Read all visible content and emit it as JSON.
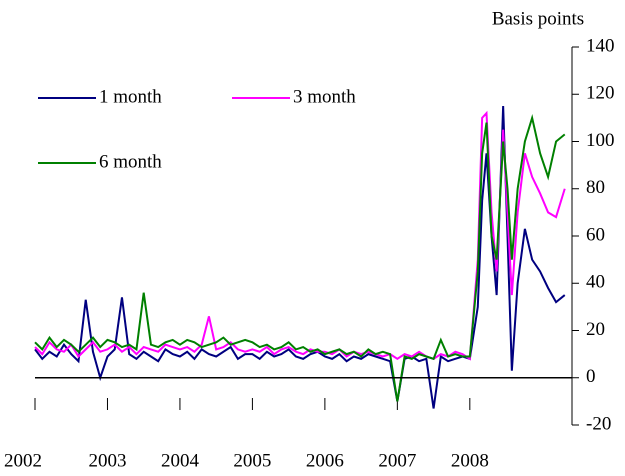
{
  "chart_data": {
    "type": "line",
    "ylabel": "Basis points",
    "x": [
      2002.0,
      2002.1,
      2002.2,
      2002.3,
      2002.4,
      2002.5,
      2002.6,
      2002.7,
      2002.8,
      2002.9,
      2003.0,
      2003.1,
      2003.2,
      2003.3,
      2003.4,
      2003.5,
      2003.6,
      2003.7,
      2003.8,
      2003.9,
      2004.0,
      2004.1,
      2004.2,
      2004.3,
      2004.4,
      2004.5,
      2004.6,
      2004.7,
      2004.8,
      2004.9,
      2005.0,
      2005.1,
      2005.2,
      2005.3,
      2005.4,
      2005.5,
      2005.6,
      2005.7,
      2005.8,
      2005.9,
      2006.0,
      2006.1,
      2006.2,
      2006.3,
      2006.4,
      2006.5,
      2006.6,
      2006.7,
      2006.8,
      2006.9,
      2007.0,
      2007.1,
      2007.2,
      2007.3,
      2007.4,
      2007.5,
      2007.6,
      2007.7,
      2007.8,
      2007.9,
      2008.0,
      2008.11,
      2008.17,
      2008.23,
      2008.3,
      2008.37,
      2008.46,
      2008.52,
      2008.58,
      2008.66,
      2008.76,
      2008.86,
      2008.97,
      2009.08,
      2009.19,
      2009.31
    ],
    "series": [
      {
        "name": "1 month",
        "color": "#000080",
        "values": [
          12,
          8,
          11,
          9,
          14,
          10,
          7,
          33,
          11,
          0,
          9,
          12,
          34,
          10,
          8,
          11,
          9,
          7,
          12,
          10,
          9,
          11,
          8,
          12,
          10,
          9,
          11,
          13,
          8,
          10,
          10,
          8,
          11,
          9,
          10,
          12,
          9,
          8,
          10,
          11,
          9,
          8,
          10,
          7,
          9,
          8,
          10,
          9,
          8,
          7,
          -10,
          8,
          9,
          7,
          8,
          -13,
          9,
          7,
          8,
          9,
          8,
          30,
          75,
          95,
          60,
          35,
          115,
          60,
          3,
          40,
          63,
          50,
          45,
          38,
          32,
          35
        ]
      },
      {
        "name": "3 month",
        "color": "#ff00ff",
        "values": [
          13,
          10,
          15,
          12,
          11,
          14,
          9,
          12,
          15,
          11,
          12,
          14,
          11,
          13,
          10,
          13,
          12,
          11,
          14,
          13,
          12,
          13,
          11,
          14,
          26,
          12,
          13,
          15,
          12,
          11,
          12,
          11,
          13,
          10,
          12,
          13,
          11,
          10,
          12,
          11,
          11,
          10,
          12,
          9,
          11,
          10,
          11,
          10,
          9,
          10,
          8,
          10,
          9,
          11,
          9,
          8,
          10,
          9,
          11,
          10,
          8,
          50,
          110,
          112,
          70,
          45,
          105,
          70,
          35,
          70,
          95,
          85,
          78,
          70,
          68,
          80
        ]
      },
      {
        "name": "6 month",
        "color": "#008000",
        "values": [
          15,
          12,
          17,
          13,
          16,
          14,
          11,
          14,
          17,
          13,
          16,
          15,
          13,
          14,
          12,
          36,
          14,
          13,
          15,
          16,
          14,
          16,
          15,
          13,
          14,
          15,
          17,
          14,
          15,
          16,
          15,
          13,
          14,
          12,
          13,
          15,
          12,
          13,
          11,
          12,
          10,
          11,
          12,
          10,
          11,
          9,
          12,
          10,
          11,
          10,
          -10,
          9,
          8,
          10,
          9,
          8,
          16,
          9,
          10,
          9,
          9,
          45,
          95,
          108,
          60,
          50,
          100,
          80,
          50,
          80,
          100,
          110,
          95,
          85,
          100,
          103
        ]
      }
    ],
    "xlim": [
      2002,
      2009.41
    ],
    "xticks": [
      2002,
      2003,
      2004,
      2005,
      2006,
      2007,
      2008
    ],
    "ylim": [
      -20,
      140
    ],
    "yticks": [
      -20,
      0,
      20,
      40,
      60,
      80,
      100,
      120,
      140
    ],
    "y_axis_side": "right",
    "zero_line": true
  }
}
